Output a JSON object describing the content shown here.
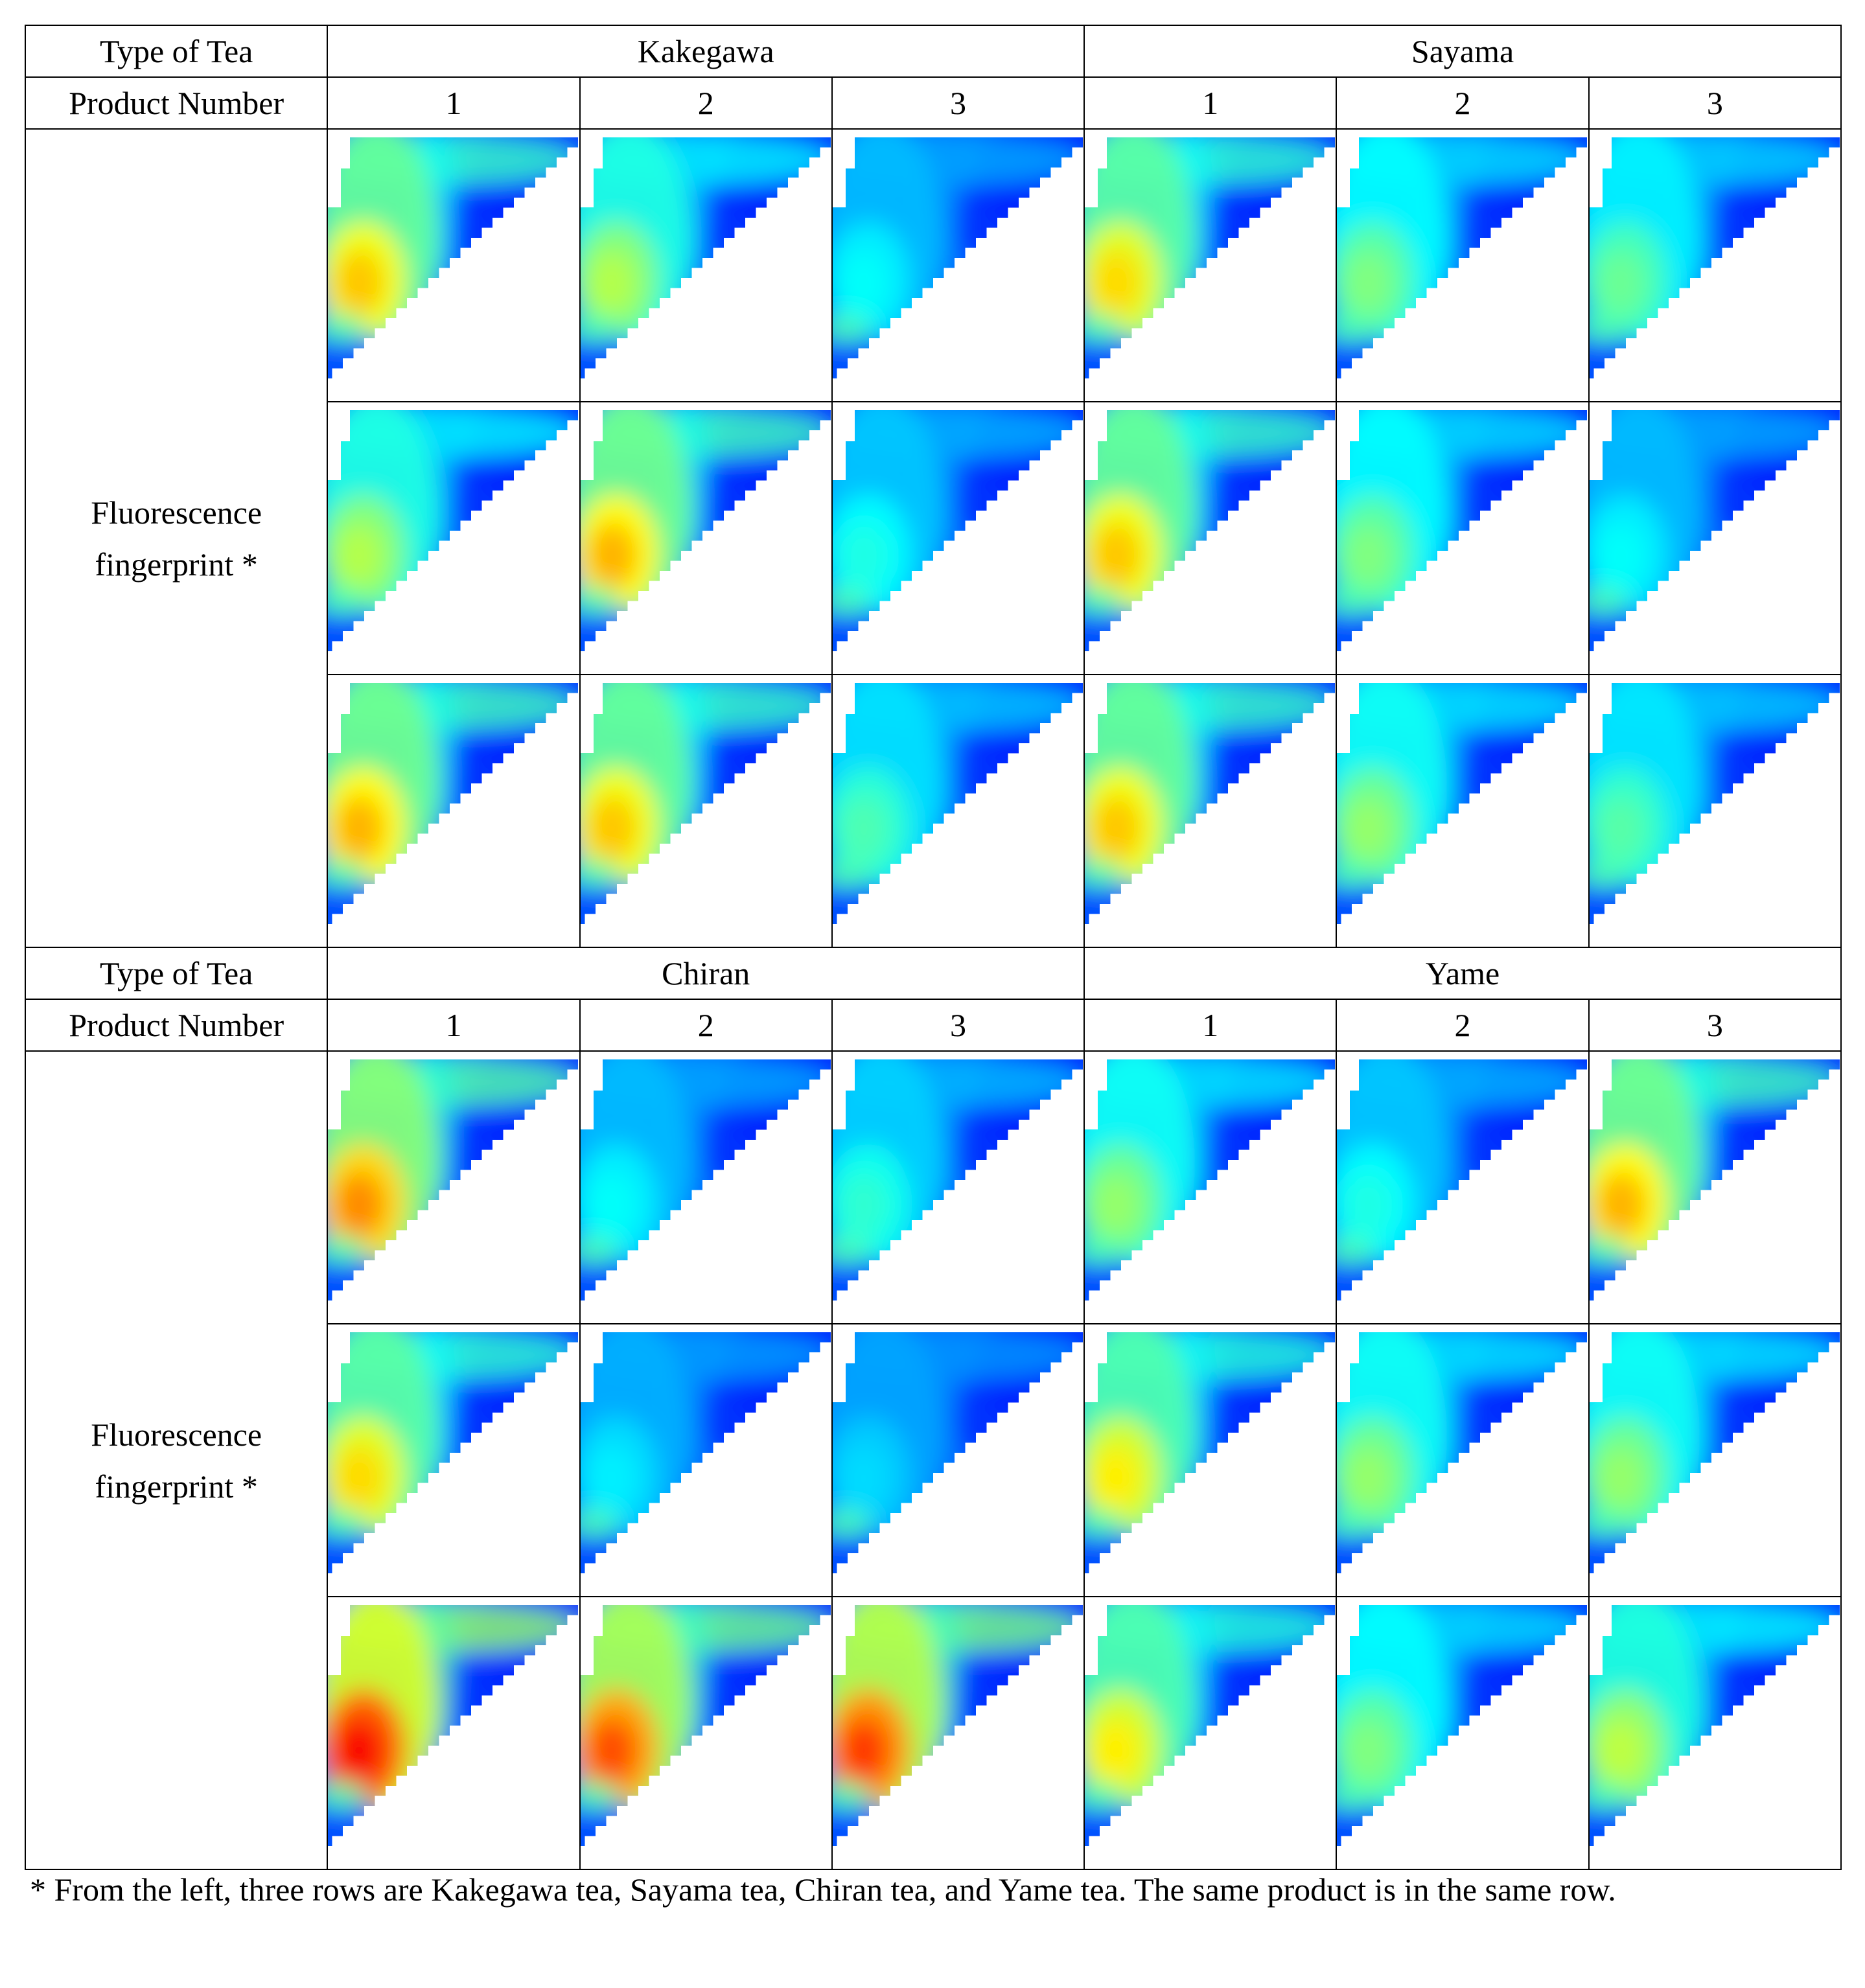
{
  "blocks": [
    {
      "type_label": "Type of Tea",
      "product_label": "Product Number",
      "row_label_line1": "Fluorescence",
      "row_label_line2": "fingerprint *",
      "regions": [
        "Kakegawa",
        "Sayama"
      ],
      "product_numbers": [
        "1",
        "2",
        "3",
        "1",
        "2",
        "3"
      ]
    },
    {
      "type_label": "Type of Tea",
      "product_label": "Product Number",
      "row_label_line1": "Fluorescence",
      "row_label_line2": "fingerprint *",
      "regions": [
        "Chiran",
        "Yame"
      ],
      "product_numbers": [
        "1",
        "2",
        "3",
        "1",
        "2",
        "3"
      ]
    }
  ],
  "footnote": "* From the left, three rows are Kakegawa tea, Sayama tea, Chiran tea, and Yame tea. The same product is in the same row.",
  "colormap": "jet",
  "fingerprint_peak_intensity": [
    [
      [
        0.68,
        0.55,
        0.38,
        0.66,
        0.5,
        0.48
      ],
      [
        0.55,
        0.7,
        0.4,
        0.68,
        0.5,
        0.38
      ],
      [
        0.7,
        0.68,
        0.45,
        0.68,
        0.52,
        0.46
      ]
    ],
    [
      [
        0.74,
        0.38,
        0.42,
        0.52,
        0.4,
        0.7
      ],
      [
        0.66,
        0.36,
        0.34,
        0.64,
        0.52,
        0.52
      ],
      [
        0.88,
        0.8,
        0.82,
        0.64,
        0.5,
        0.56
      ]
    ]
  ]
}
